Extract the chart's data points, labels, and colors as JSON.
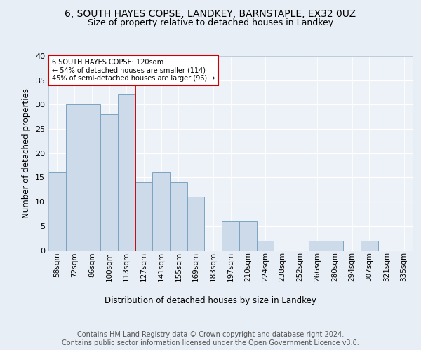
{
  "title1": "6, SOUTH HAYES COPSE, LANDKEY, BARNSTAPLE, EX32 0UZ",
  "title2": "Size of property relative to detached houses in Landkey",
  "xlabel": "Distribution of detached houses by size in Landkey",
  "ylabel": "Number of detached properties",
  "categories": [
    "58sqm",
    "72sqm",
    "86sqm",
    "100sqm",
    "113sqm",
    "127sqm",
    "141sqm",
    "155sqm",
    "169sqm",
    "183sqm",
    "197sqm",
    "210sqm",
    "224sqm",
    "238sqm",
    "252sqm",
    "266sqm",
    "280sqm",
    "294sqm",
    "307sqm",
    "321sqm",
    "335sqm"
  ],
  "values": [
    16,
    30,
    30,
    28,
    32,
    14,
    16,
    14,
    11,
    0,
    6,
    6,
    2,
    0,
    0,
    2,
    2,
    0,
    2,
    0,
    0
  ],
  "bar_color": "#cddaea",
  "bar_edgecolor": "#7ba3c0",
  "bar_linewidth": 0.7,
  "vline_x_idx": 4,
  "vline_color": "#cc0000",
  "ann_line1": "6 SOUTH HAYES COPSE: 120sqm",
  "ann_line2": "← 54% of detached houses are smaller (114)",
  "ann_line3": "45% of semi-detached houses are larger (96) →",
  "annotation_box_color": "#cc0000",
  "ylim": [
    0,
    40
  ],
  "yticks": [
    0,
    5,
    10,
    15,
    20,
    25,
    30,
    35,
    40
  ],
  "footer_text": "Contains HM Land Registry data © Crown copyright and database right 2024.\nContains public sector information licensed under the Open Government Licence v3.0.",
  "bg_color": "#e8eef5",
  "plot_bg_color": "#edf2f8",
  "title1_fontsize": 10,
  "title2_fontsize": 9,
  "xlabel_fontsize": 8.5,
  "ylabel_fontsize": 8.5,
  "footer_fontsize": 7,
  "tick_fontsize": 7.5,
  "ytick_fontsize": 8
}
